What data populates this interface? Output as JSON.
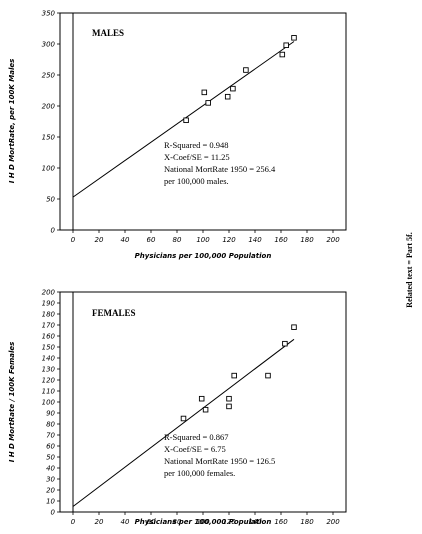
{
  "side_note": "Related text = Part 5f.",
  "chart_data": [
    {
      "type": "scatter",
      "title": "MALES",
      "xlabel": "Physicians per 100,000 Population",
      "ylabel": "I H D MortRate, per 100K Males",
      "xlim": [
        -10,
        210
      ],
      "ylim": [
        0,
        350
      ],
      "xticks": [
        0,
        20,
        40,
        60,
        80,
        100,
        120,
        140,
        160,
        180,
        200
      ],
      "yticks": [
        0,
        50,
        100,
        150,
        200,
        250,
        300,
        350
      ],
      "points": [
        {
          "x": 87,
          "y": 177
        },
        {
          "x": 101,
          "y": 222
        },
        {
          "x": 104,
          "y": 205
        },
        {
          "x": 119,
          "y": 215
        },
        {
          "x": 123,
          "y": 228
        },
        {
          "x": 133,
          "y": 258
        },
        {
          "x": 161,
          "y": 283
        },
        {
          "x": 164,
          "y": 298
        },
        {
          "x": 170,
          "y": 310
        }
      ],
      "fit_line": {
        "x": [
          0,
          170
        ],
        "y": [
          53,
          304
        ]
      },
      "annotations": [
        "R-Squared = 0.948",
        "X-Coef/SE = 11.25",
        "National MortRate 1950 = 256.4",
        "per 100,000 males."
      ]
    },
    {
      "type": "scatter",
      "title": "FEMALES",
      "xlabel": "Physicians per 100,000 Population",
      "ylabel": "I H D MortRate / 100K Females",
      "xlim": [
        -10,
        210
      ],
      "ylim": [
        0,
        200
      ],
      "xticks": [
        0,
        20,
        40,
        60,
        80,
        100,
        120,
        140,
        160,
        180,
        200
      ],
      "yticks": [
        0,
        10,
        20,
        30,
        40,
        50,
        60,
        70,
        80,
        90,
        100,
        110,
        120,
        130,
        140,
        150,
        160,
        170,
        180,
        190,
        200
      ],
      "points": [
        {
          "x": 85,
          "y": 85
        },
        {
          "x": 99,
          "y": 103
        },
        {
          "x": 102,
          "y": 93
        },
        {
          "x": 120,
          "y": 103
        },
        {
          "x": 120,
          "y": 96
        },
        {
          "x": 124,
          "y": 124
        },
        {
          "x": 150,
          "y": 124
        },
        {
          "x": 163,
          "y": 153
        },
        {
          "x": 170,
          "y": 168
        }
      ],
      "fit_line": {
        "x": [
          0,
          170
        ],
        "y": [
          5,
          157
        ]
      },
      "annotations": [
        "R-Squared = 0.867",
        "X-Coef/SE = 6.75",
        "National MortRate 1950 = 126.5",
        "per 100,000 females."
      ]
    }
  ]
}
